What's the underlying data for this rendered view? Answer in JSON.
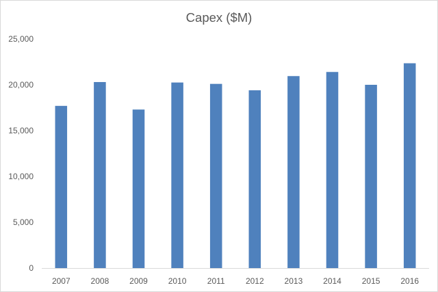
{
  "chart_data": {
    "type": "bar",
    "title": "Capex ($M)",
    "xlabel": "",
    "ylabel": "",
    "categories": [
      "2007",
      "2008",
      "2009",
      "2010",
      "2011",
      "2012",
      "2013",
      "2014",
      "2015",
      "2016"
    ],
    "series": [
      {
        "values": [
          17700,
          20300,
          17300,
          20250,
          20100,
          19400,
          20950,
          21400,
          20000,
          22350
        ]
      }
    ],
    "ylim": [
      0,
      25000
    ],
    "yticks": [
      0,
      5000,
      10000,
      15000,
      20000,
      25000
    ],
    "ytick_labels": [
      "0",
      "5,000",
      "10,000",
      "15,000",
      "20,000",
      "25,000"
    ],
    "grid": false,
    "legend": "none",
    "bar_color": "#4f81bd",
    "axis_color": "#d9d9d9",
    "text_color": "#595959"
  }
}
